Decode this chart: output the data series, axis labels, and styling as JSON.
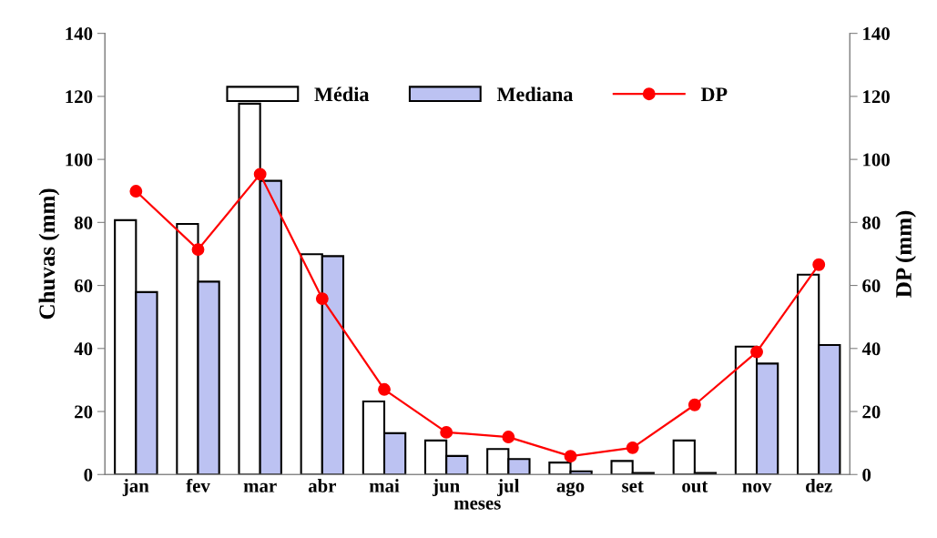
{
  "chart_data": {
    "type": "bar",
    "xlabel": "meses",
    "ylabel": "Chuvas (mm)",
    "y2label": "DP (mm)",
    "categories": [
      "jan",
      "fev",
      "mar",
      "abr",
      "mai",
      "jun",
      "jul",
      "ago",
      "set",
      "out",
      "nov",
      "dez"
    ],
    "series": [
      {
        "name": "Média",
        "color": "#ffffff",
        "values": [
          80.7,
          79.5,
          117.7,
          69.9,
          23.2,
          10.8,
          8.1,
          3.8,
          4.3,
          10.8,
          40.6,
          63.4
        ]
      },
      {
        "name": "Mediana",
        "color": "#bcc2f2",
        "values": [
          57.9,
          61.2,
          93.2,
          69.3,
          13.1,
          5.9,
          4.9,
          1.0,
          0.5,
          0.5,
          35.2,
          41.1
        ]
      },
      {
        "name": "DP",
        "type": "line",
        "axis": "y2",
        "color": "#ff0000",
        "marker": "circle",
        "line_style": "solid",
        "values": [
          89.9,
          71.4,
          95.3,
          55.8,
          27.0,
          13.4,
          11.9,
          5.8,
          8.5,
          22.1,
          38.9,
          66.6
        ]
      }
    ],
    "ylim": [
      0,
      140
    ],
    "yticks": [
      0,
      20,
      40,
      60,
      80,
      100,
      120,
      140
    ],
    "y2lim": [
      0,
      140
    ],
    "y2ticks": [
      0,
      20,
      40,
      60,
      80,
      100,
      120,
      140
    ],
    "grid": false,
    "legend": "top"
  }
}
